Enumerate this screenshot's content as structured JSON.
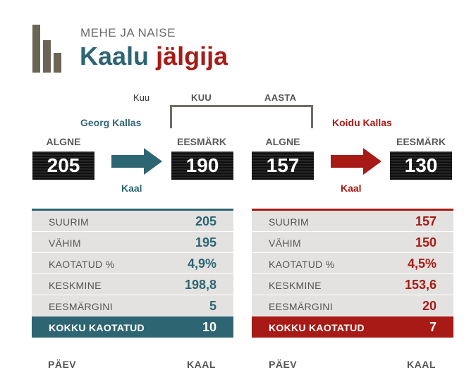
{
  "header": {
    "subtitle": "MEHE JA NAISE",
    "title_part1": "Kaalu",
    "title_part2": "jälgija"
  },
  "period": {
    "label": "Kuu",
    "option_month": "KUU",
    "option_year": "AASTA"
  },
  "person1": {
    "name": "Georg Kallas",
    "start_label": "ALGNE",
    "start_value": "205",
    "goal_label": "EESMÄRK",
    "goal_value": "190",
    "unit_label": "Kaal",
    "stats": [
      {
        "label": "SUURIM",
        "value": "205"
      },
      {
        "label": "VÄHIM",
        "value": "195"
      },
      {
        "label": "KAOTATUD %",
        "value": "4,9%"
      },
      {
        "label": "KESKMINE",
        "value": "198,8"
      },
      {
        "label": "EESMÄRGINI",
        "value": "5"
      }
    ],
    "total_label": "KOKKU KAOTATUD",
    "total_value": "10"
  },
  "person2": {
    "name": "Koidu Kallas",
    "start_label": "ALGNE",
    "start_value": "157",
    "goal_label": "EESMÄRK",
    "goal_value": "130",
    "unit_label": "Kaal",
    "stats": [
      {
        "label": "SUURIM",
        "value": "157"
      },
      {
        "label": "VÄHIM",
        "value": "150"
      },
      {
        "label": "KAOTATUD %",
        "value": "4,5%"
      },
      {
        "label": "KESKMINE",
        "value": "153,6"
      },
      {
        "label": "EESMÄRGINI",
        "value": "20"
      }
    ],
    "total_label": "KOKKU KAOTATUD",
    "total_value": "7"
  },
  "table_headers": {
    "left_date": "PÄEV",
    "left_weight": "KAAL",
    "right_date": "PÄEV",
    "right_weight": "KAAL"
  },
  "colors": {
    "teal": "#2e6573",
    "red": "#a81a15",
    "logo": "#6b6558"
  }
}
